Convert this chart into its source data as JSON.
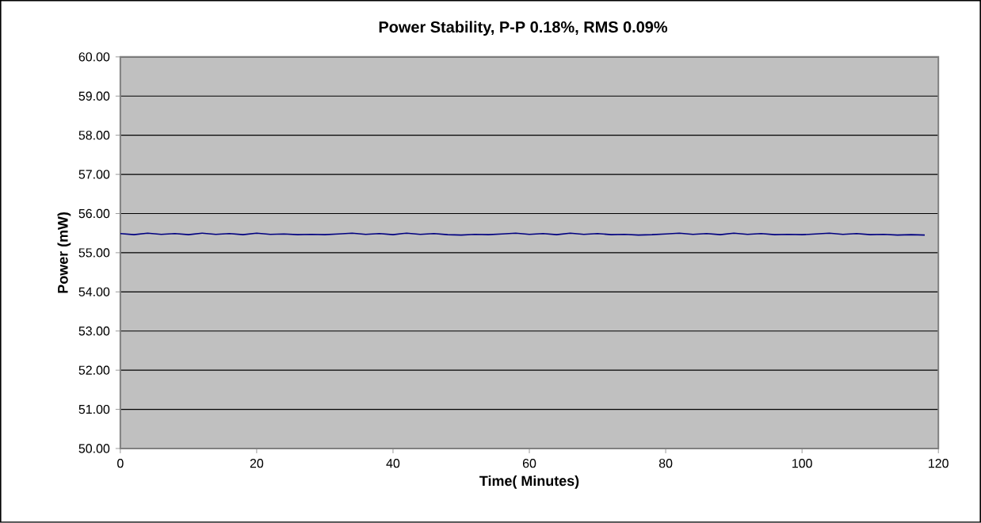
{
  "chart_data": {
    "type": "line",
    "title": "Power Stability, P-P 0.18%, RMS 0.09%",
    "xlabel": "Time( Minutes)",
    "ylabel": "Power (mW)",
    "x": [
      0,
      2,
      4,
      6,
      8,
      10,
      12,
      14,
      16,
      18,
      20,
      22,
      24,
      26,
      28,
      30,
      32,
      34,
      36,
      38,
      40,
      42,
      44,
      46,
      48,
      50,
      52,
      54,
      56,
      58,
      60,
      62,
      64,
      66,
      68,
      70,
      72,
      74,
      76,
      78,
      80,
      82,
      84,
      86,
      88,
      90,
      92,
      94,
      96,
      98,
      100,
      102,
      104,
      106,
      108,
      110,
      112,
      114,
      116,
      118
    ],
    "series": [
      {
        "color": "#000080",
        "values": [
          55.49,
          55.46,
          55.5,
          55.47,
          55.49,
          55.46,
          55.5,
          55.47,
          55.49,
          55.46,
          55.5,
          55.47,
          55.48,
          55.46,
          55.47,
          55.46,
          55.48,
          55.5,
          55.47,
          55.49,
          55.46,
          55.5,
          55.47,
          55.49,
          55.46,
          55.45,
          55.47,
          55.46,
          55.48,
          55.5,
          55.47,
          55.49,
          55.46,
          55.5,
          55.47,
          55.49,
          55.46,
          55.47,
          55.45,
          55.46,
          55.48,
          55.5,
          55.47,
          55.49,
          55.46,
          55.5,
          55.47,
          55.49,
          55.46,
          55.47,
          55.46,
          55.48,
          55.5,
          55.47,
          55.49,
          55.46,
          55.47,
          55.45,
          55.46,
          55.45
        ]
      }
    ],
    "xlim": [
      0,
      120
    ],
    "ylim": [
      50,
      60
    ],
    "xticks": [
      0,
      20,
      40,
      60,
      80,
      100,
      120
    ],
    "yticks": [
      {
        "value": 50,
        "label": "50.00"
      },
      {
        "value": 51,
        "label": "51.00"
      },
      {
        "value": 52,
        "label": "52.00"
      },
      {
        "value": 53,
        "label": "53.00"
      },
      {
        "value": 54,
        "label": "54.00"
      },
      {
        "value": 55,
        "label": "55.00"
      },
      {
        "value": 56,
        "label": "56.00"
      },
      {
        "value": 57,
        "label": "57.00"
      },
      {
        "value": 58,
        "label": "58.00"
      },
      {
        "value": 59,
        "label": "59.00"
      },
      {
        "value": 60,
        "label": "60.00"
      }
    ],
    "grid": "y",
    "marker": "none",
    "line_style": "solid"
  }
}
